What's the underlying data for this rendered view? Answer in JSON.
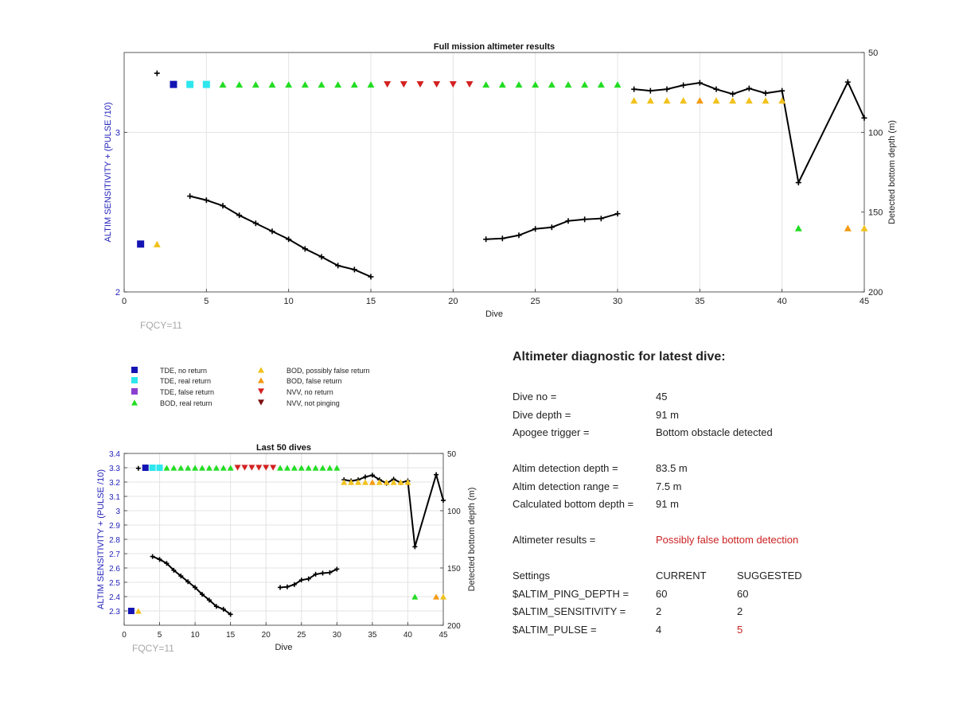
{
  "colors": {
    "tde_no_return": "#1414b4",
    "tde_real_return": "#2ee6ee",
    "tde_false_return": "#8a3fd1",
    "bod_real_return": "#22dd22",
    "bod_possibly_false": "#f2c21d",
    "bod_false_return": "#f39a12",
    "nvv_no_return": "#d42020",
    "nvv_not_pinging": "#7a1010",
    "depth_line": "#000000",
    "left_axis": "#2222bb",
    "highlight": "#cc2222"
  },
  "legend": [
    {
      "label": "TDE, no return",
      "marker": "square",
      "color": "#1414b4"
    },
    {
      "label": "TDE, real return",
      "marker": "square",
      "color": "#2ee6ee"
    },
    {
      "label": "TDE, false return",
      "marker": "square",
      "color": "#8a3fd1"
    },
    {
      "label": "BOD, real return",
      "marker": "triangle-up",
      "color": "#22dd22"
    },
    {
      "label": "BOD, possibly false return",
      "marker": "triangle-up",
      "color": "#f2c21d"
    },
    {
      "label": "BOD, false return",
      "marker": "triangle-up",
      "color": "#f39a12"
    },
    {
      "label": "NVV, no return",
      "marker": "triangle-down",
      "color": "#d42020"
    },
    {
      "label": "NVV, not pinging",
      "marker": "triangle-down",
      "color": "#7a1010"
    }
  ],
  "chart_data": [
    {
      "type": "scatter",
      "title": "Full mission altimeter results",
      "xlabel": "Dive",
      "ylabel": "ALTIM SENSITIVITY + (PULSE /10)",
      "y2label": "Detected bottom depth (m)",
      "annotation": "FQCY=11",
      "xlim": [
        0,
        45
      ],
      "ylim": [
        2,
        3.5
      ],
      "y2lim": [
        50,
        200
      ],
      "y2_reversed": true,
      "xticks": [
        0,
        5,
        10,
        15,
        20,
        25,
        30,
        35,
        40,
        45
      ],
      "yticks": [
        2,
        3
      ],
      "y2ticks": [
        50,
        100,
        150,
        200
      ],
      "grid": true,
      "series": [
        {
          "name": "TDE, no return",
          "marker": "square",
          "points": [
            [
              1,
              2.3
            ],
            [
              3,
              3.3
            ]
          ]
        },
        {
          "name": "TDE, real return",
          "marker": "square",
          "points": [
            [
              4,
              3.3
            ],
            [
              5,
              3.3
            ]
          ]
        },
        {
          "name": "BOD, real return",
          "marker": "triangle-up",
          "points": [
            [
              6,
              3.3
            ],
            [
              7,
              3.3
            ],
            [
              8,
              3.3
            ],
            [
              9,
              3.3
            ],
            [
              10,
              3.3
            ],
            [
              11,
              3.3
            ],
            [
              12,
              3.3
            ],
            [
              13,
              3.3
            ],
            [
              14,
              3.3
            ],
            [
              15,
              3.3
            ],
            [
              22,
              3.3
            ],
            [
              23,
              3.3
            ],
            [
              24,
              3.3
            ],
            [
              25,
              3.3
            ],
            [
              26,
              3.3
            ],
            [
              27,
              3.3
            ],
            [
              28,
              3.3
            ],
            [
              29,
              3.3
            ],
            [
              30,
              3.3
            ],
            [
              41,
              2.4
            ]
          ]
        },
        {
          "name": "NVV, no return",
          "marker": "triangle-down",
          "points": [
            [
              16,
              3.3
            ],
            [
              17,
              3.3
            ],
            [
              18,
              3.3
            ],
            [
              19,
              3.3
            ],
            [
              20,
              3.3
            ],
            [
              21,
              3.3
            ]
          ]
        },
        {
          "name": "BOD, possibly false return",
          "marker": "triangle-up",
          "points": [
            [
              2,
              2.3
            ],
            [
              31,
              3.2
            ],
            [
              32,
              3.2
            ],
            [
              33,
              3.2
            ],
            [
              34,
              3.2
            ],
            [
              36,
              3.2
            ],
            [
              37,
              3.2
            ],
            [
              38,
              3.2
            ],
            [
              39,
              3.2
            ],
            [
              40,
              3.2
            ],
            [
              45,
              2.4
            ]
          ]
        },
        {
          "name": "BOD, false return",
          "marker": "triangle-up",
          "points": [
            [
              35,
              3.2
            ],
            [
              44,
              2.4
            ]
          ]
        },
        {
          "name": "Detected bottom depth (m)",
          "axis": "right",
          "line": true,
          "segments": [
            [
              [
                2,
                63
              ]
            ],
            [
              [
                4,
                140
              ],
              [
                5,
                142.5
              ],
              [
                6,
                146
              ],
              [
                7,
                152
              ],
              [
                8,
                157
              ],
              [
                9,
                162
              ],
              [
                10,
                167
              ],
              [
                11,
                173
              ],
              [
                12,
                178
              ],
              [
                13,
                183.5
              ],
              [
                14,
                186
              ],
              [
                15,
                190.5
              ]
            ],
            [
              [
                22,
                167
              ],
              [
                23,
                166.5
              ],
              [
                24,
                164.5
              ],
              [
                25,
                160.5
              ],
              [
                26,
                159.5
              ],
              [
                27,
                155.5
              ],
              [
                28,
                154.5
              ],
              [
                29,
                154
              ],
              [
                30,
                151
              ]
            ],
            [
              [
                31,
                73
              ],
              [
                32,
                74
              ],
              [
                33,
                73
              ],
              [
                34,
                70.5
              ],
              [
                35,
                69
              ],
              [
                36,
                73
              ],
              [
                37,
                76
              ],
              [
                38,
                72.5
              ],
              [
                39,
                75.5
              ],
              [
                40,
                74
              ],
              [
                41,
                131.5
              ],
              [
                44,
                68.5
              ],
              [
                45,
                91
              ]
            ]
          ]
        }
      ]
    },
    {
      "type": "scatter",
      "title": "Last 50 dives",
      "xlabel": "Dive",
      "ylabel": "ALTIM SENSITIVITY + (PULSE /10)",
      "y2label": "Detected bottom depth (m)",
      "annotation": "FQCY=11",
      "xlim": [
        0,
        45
      ],
      "ylim": [
        2.2,
        3.4
      ],
      "y2lim": [
        50,
        200
      ],
      "y2_reversed": true,
      "xticks": [
        0,
        5,
        10,
        15,
        20,
        25,
        30,
        35,
        40,
        45
      ],
      "yticks": [
        2.3,
        2.4,
        2.5,
        2.6,
        2.7,
        2.8,
        2.9,
        3,
        3.1,
        3.2,
        3.3,
        3.4
      ],
      "y2ticks": [
        50,
        100,
        150,
        200
      ],
      "grid": true,
      "series_ref": "same data as full mission chart"
    }
  ],
  "tick_text": {
    "x": [
      "0",
      "5",
      "10",
      "15",
      "20",
      "25",
      "30",
      "35",
      "40",
      "45"
    ],
    "main_y": [
      "2",
      "3"
    ],
    "y2": [
      "50",
      "100",
      "150",
      "200"
    ],
    "small_y": [
      "2.3",
      "2.4",
      "2.5",
      "2.6",
      "2.7",
      "2.8",
      "2.9",
      "3",
      "3.1",
      "3.2",
      "3.3",
      "3.4"
    ]
  },
  "main_chart": {
    "title": "Full mission altimeter results",
    "xlabel": "Dive",
    "ylabel": "ALTIM SENSITIVITY + (PULSE /10)",
    "y2label": "Detected bottom depth (m)",
    "fqcy": "FQCY=11"
  },
  "small_chart": {
    "title": "Last 50 dives",
    "xlabel": "Dive",
    "ylabel": "ALTIM SENSITIVITY + (PULSE /10)",
    "y2label": "Detected bottom depth (m)",
    "fqcy": "FQCY=11"
  },
  "diagnostic": {
    "title": "Altimeter diagnostic for latest dive:",
    "dive_no_label": "Dive no =",
    "dive_no_value": "45",
    "dive_depth_label": "Dive depth =",
    "dive_depth_value": "91 m",
    "apogee_label": "Apogee trigger =",
    "apogee_value": "Bottom obstacle detected",
    "detection_depth_label": "Altim detection depth =",
    "detection_depth_value": "83.5 m",
    "detection_range_label": "Altim detection range =",
    "detection_range_value": "7.5 m",
    "bottom_depth_label": "Calculated bottom depth =",
    "bottom_depth_value": "91 m",
    "results_label": "Altimeter results =",
    "results_value": "Possibly false bottom detection",
    "settings_label": "Settings",
    "current_label": "CURRENT",
    "suggested_label": "SUGGESTED",
    "ping_depth_label": "$ALTIM_PING_DEPTH =",
    "ping_depth_current": "60",
    "ping_depth_suggested": "60",
    "sensitivity_label": "$ALTIM_SENSITIVITY =",
    "sensitivity_current": "2",
    "sensitivity_suggested": "2",
    "pulse_label": "$ALTIM_PULSE =",
    "pulse_current": "4",
    "pulse_suggested": "5"
  }
}
